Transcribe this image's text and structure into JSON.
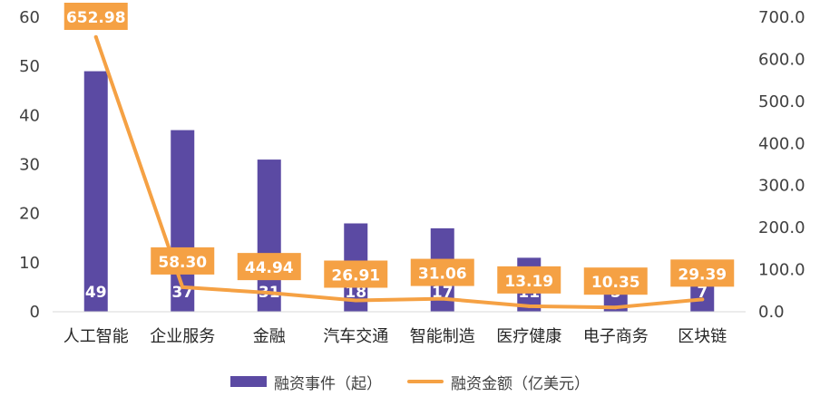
{
  "chart_data": {
    "type": "bar+line",
    "categories": [
      "人工智能",
      "企业服务",
      "金融",
      "汽车交通",
      "智能制造",
      "医疗健康",
      "电子商务",
      "区块链"
    ],
    "series": [
      {
        "name": "融资事件（起）",
        "type": "bar",
        "axis": "left",
        "color": "#5b4aa3",
        "values": [
          49,
          37,
          31,
          18,
          17,
          11,
          5,
          7
        ],
        "labels": [
          "49",
          "37",
          "31",
          "18",
          "17",
          "11",
          "5",
          "7"
        ]
      },
      {
        "name": "融资金额（亿美元）",
        "type": "line",
        "axis": "right",
        "color": "#f5a144",
        "values": [
          652.98,
          58.3,
          44.94,
          26.91,
          31.06,
          13.19,
          10.35,
          29.39
        ],
        "labels": [
          "652.98",
          "58.30",
          "44.94",
          "26.91",
          "31.06",
          "13.19",
          "10.35",
          "29.39"
        ]
      }
    ],
    "y_left": {
      "min": 0,
      "max": 60,
      "step": 10,
      "tick_labels": [
        "0",
        "10",
        "20",
        "30",
        "40",
        "50",
        "60"
      ]
    },
    "y_right": {
      "min": 0,
      "max": 700,
      "step": 100,
      "tick_labels": [
        "0.0",
        "100.0",
        "200.0",
        "300.0",
        "400.0",
        "500.0",
        "600.0",
        "700.0"
      ]
    },
    "grid": false,
    "legend_position": "bottom"
  }
}
